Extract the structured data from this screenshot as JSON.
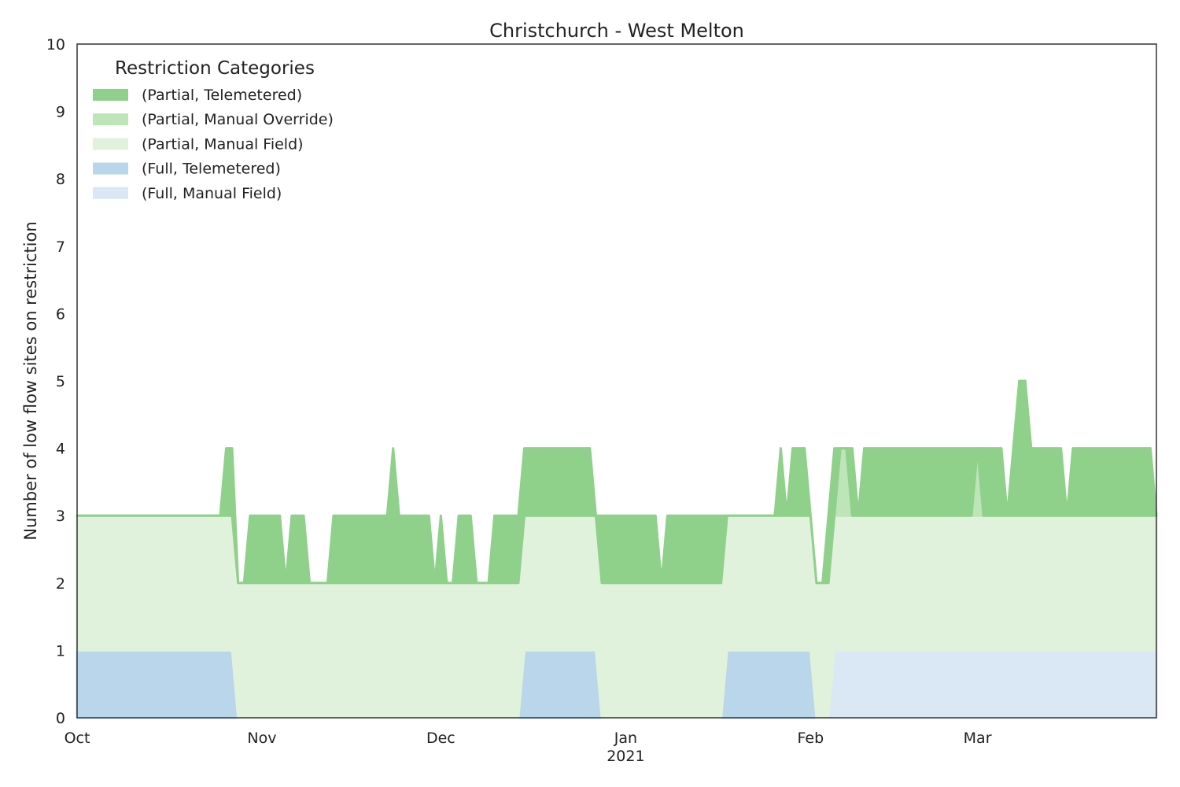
{
  "chart_data": {
    "type": "area",
    "stacked": true,
    "title": "Christchurch - West Melton",
    "xlabel": "",
    "ylabel": "Number of low flow sites on restriction",
    "ylim": [
      0,
      10
    ],
    "yticks": [
      0,
      1,
      2,
      3,
      4,
      5,
      6,
      7,
      8,
      9,
      10
    ],
    "xlim": [
      "2020-10-01",
      "2021-03-31"
    ],
    "xticks": [
      {
        "date": "2020-10-01",
        "label": "Oct",
        "sublabel": ""
      },
      {
        "date": "2020-11-01",
        "label": "Nov",
        "sublabel": ""
      },
      {
        "date": "2020-12-01",
        "label": "Dec",
        "sublabel": ""
      },
      {
        "date": "2021-01-01",
        "label": "Jan",
        "sublabel": "2021"
      },
      {
        "date": "2021-02-01",
        "label": "Feb",
        "sublabel": ""
      },
      {
        "date": "2021-03-01",
        "label": "Mar",
        "sublabel": ""
      }
    ],
    "grid": false,
    "legend": {
      "title": "Restriction Categories",
      "position": "top-left"
    },
    "series": [
      {
        "name": "(Full, Manual Field)",
        "color": "#dae8f5",
        "points": [
          [
            "2020-10-01",
            0
          ],
          [
            "2021-02-04",
            0
          ],
          [
            "2021-02-05",
            1
          ],
          [
            "2021-03-31",
            1
          ]
        ]
      },
      {
        "name": "(Full, Telemetered)",
        "color": "#bad6ea",
        "points": [
          [
            "2020-10-01",
            1
          ],
          [
            "2020-10-27",
            1
          ],
          [
            "2020-10-28",
            0
          ],
          [
            "2020-12-14",
            0
          ],
          [
            "2020-12-15",
            1
          ],
          [
            "2020-12-27",
            1
          ],
          [
            "2020-12-28",
            0
          ],
          [
            "2021-01-17",
            0
          ],
          [
            "2021-01-18",
            1
          ],
          [
            "2021-02-01",
            1
          ],
          [
            "2021-02-02",
            0
          ],
          [
            "2021-03-31",
            0
          ]
        ]
      },
      {
        "name": "(Partial, Manual Field)",
        "color": "#e0f2dc",
        "points": [
          [
            "2020-10-01",
            2
          ],
          [
            "2020-10-26",
            2
          ],
          [
            "2020-10-27",
            2
          ],
          [
            "2020-10-28",
            2
          ],
          [
            "2020-12-14",
            2
          ],
          [
            "2020-12-15",
            2
          ],
          [
            "2020-12-26",
            2
          ],
          [
            "2020-12-27",
            2
          ],
          [
            "2020-12-28",
            2
          ],
          [
            "2021-01-17",
            2
          ],
          [
            "2021-01-18",
            2
          ],
          [
            "2021-02-01",
            2
          ],
          [
            "2021-02-02",
            2
          ],
          [
            "2021-02-04",
            2
          ],
          [
            "2021-02-05",
            2
          ],
          [
            "2021-03-31",
            2
          ]
        ]
      },
      {
        "name": "(Partial, Manual Override)",
        "color": "#bde5b8",
        "points": [
          [
            "2020-10-01",
            0
          ],
          [
            "2020-10-26",
            0
          ],
          [
            "2020-10-27",
            0
          ],
          [
            "2020-10-28",
            0
          ],
          [
            "2020-12-14",
            0
          ],
          [
            "2020-12-15",
            0
          ],
          [
            "2020-12-26",
            0
          ],
          [
            "2020-12-27",
            0
          ],
          [
            "2020-12-28",
            0
          ],
          [
            "2021-01-17",
            0
          ],
          [
            "2021-01-18",
            0
          ],
          [
            "2021-02-01",
            0
          ],
          [
            "2021-02-02",
            0
          ],
          [
            "2021-02-04",
            0
          ],
          [
            "2021-02-05",
            0
          ],
          [
            "2021-02-06",
            1
          ],
          [
            "2021-02-07",
            1
          ],
          [
            "2021-02-08",
            0
          ],
          [
            "2021-02-28",
            0
          ],
          [
            "2021-03-01",
            1
          ],
          [
            "2021-03-02",
            0
          ],
          [
            "2021-03-31",
            0
          ]
        ]
      },
      {
        "name": "(Partial, Telemetered)",
        "color": "#8fd08b",
        "points": [
          [
            "2020-10-01",
            0
          ],
          [
            "2020-10-25",
            0
          ],
          [
            "2020-10-26",
            1
          ],
          [
            "2020-10-27",
            1
          ],
          [
            "2020-10-28",
            0
          ],
          [
            "2020-10-29",
            0
          ],
          [
            "2020-10-30",
            1
          ],
          [
            "2020-11-04",
            1
          ],
          [
            "2020-11-05",
            0
          ],
          [
            "2020-11-06",
            1
          ],
          [
            "2020-11-08",
            1
          ],
          [
            "2020-11-09",
            0
          ],
          [
            "2020-11-11",
            0
          ],
          [
            "2020-11-12",
            0
          ],
          [
            "2020-11-13",
            1
          ],
          [
            "2020-11-22",
            1
          ],
          [
            "2020-11-23",
            2
          ],
          [
            "2020-11-24",
            1
          ],
          [
            "2020-11-29",
            1
          ],
          [
            "2020-11-30",
            0
          ],
          [
            "2020-12-01",
            1
          ],
          [
            "2020-12-02",
            0
          ],
          [
            "2020-12-03",
            0
          ],
          [
            "2020-12-04",
            1
          ],
          [
            "2020-12-06",
            1
          ],
          [
            "2020-12-07",
            0
          ],
          [
            "2020-12-09",
            0
          ],
          [
            "2020-12-10",
            1
          ],
          [
            "2020-12-13",
            1
          ],
          [
            "2020-12-14",
            1
          ],
          [
            "2020-12-15",
            1
          ],
          [
            "2020-12-26",
            1
          ],
          [
            "2020-12-27",
            0
          ],
          [
            "2020-12-28",
            1
          ],
          [
            "2021-01-06",
            1
          ],
          [
            "2021-01-07",
            0
          ],
          [
            "2021-01-08",
            1
          ],
          [
            "2021-01-16",
            1
          ],
          [
            "2021-01-17",
            1
          ],
          [
            "2021-01-18",
            0
          ],
          [
            "2021-01-26",
            0
          ],
          [
            "2021-01-27",
            1
          ],
          [
            "2021-01-28",
            0
          ],
          [
            "2021-01-29",
            1
          ],
          [
            "2021-01-31",
            1
          ],
          [
            "2021-02-01",
            0
          ],
          [
            "2021-02-02",
            0
          ],
          [
            "2021-02-03",
            0
          ],
          [
            "2021-02-04",
            1
          ],
          [
            "2021-02-05",
            1
          ],
          [
            "2021-02-06",
            0
          ],
          [
            "2021-02-07",
            0
          ],
          [
            "2021-02-08",
            1
          ],
          [
            "2021-02-09",
            0
          ],
          [
            "2021-02-10",
            1
          ],
          [
            "2021-02-28",
            1
          ],
          [
            "2021-03-01",
            0
          ],
          [
            "2021-03-02",
            1
          ],
          [
            "2021-03-05",
            1
          ],
          [
            "2021-03-06",
            0
          ],
          [
            "2021-03-08",
            2
          ],
          [
            "2021-03-09",
            2
          ],
          [
            "2021-03-10",
            1
          ],
          [
            "2021-03-15",
            1
          ],
          [
            "2021-03-16",
            0
          ],
          [
            "2021-03-17",
            1
          ],
          [
            "2021-03-30",
            1
          ],
          [
            "2021-03-31",
            0
          ]
        ]
      }
    ]
  }
}
